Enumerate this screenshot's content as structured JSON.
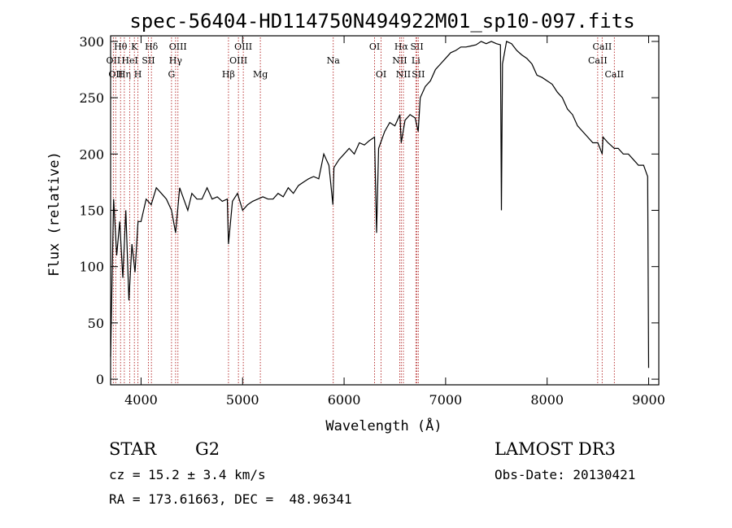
{
  "chart_data": {
    "type": "line",
    "title": "spec-56404-HD114750N494922M01_sp10-097.fits",
    "xlabel": "Wavelength (Å)",
    "ylabel": "Flux (relative)",
    "xlim": [
      3700,
      9100
    ],
    "ylim": [
      -5,
      305
    ],
    "xticks": [
      4000,
      5000,
      6000,
      7000,
      8000,
      9000
    ],
    "yticks": [
      0,
      50,
      100,
      150,
      200,
      250,
      300
    ],
    "grid": false,
    "series": [
      {
        "name": "spectrum",
        "x": [
          3700,
          3730,
          3760,
          3790,
          3820,
          3850,
          3880,
          3910,
          3940,
          3970,
          4000,
          4050,
          4100,
          4150,
          4200,
          4250,
          4300,
          4340,
          4380,
          4420,
          4460,
          4500,
          4550,
          4600,
          4650,
          4700,
          4750,
          4800,
          4850,
          4861,
          4900,
          4950,
          5000,
          5050,
          5100,
          5150,
          5200,
          5250,
          5300,
          5350,
          5400,
          5450,
          5500,
          5550,
          5600,
          5650,
          5700,
          5750,
          5800,
          5850,
          5890,
          5900,
          5950,
          6000,
          6050,
          6100,
          6150,
          6200,
          6250,
          6300,
          6320,
          6340,
          6400,
          6450,
          6500,
          6550,
          6563,
          6600,
          6650,
          6700,
          6730,
          6750,
          6800,
          6850,
          6900,
          6950,
          7000,
          7050,
          7100,
          7150,
          7200,
          7250,
          7300,
          7350,
          7400,
          7450,
          7500,
          7540,
          7550,
          7560,
          7600,
          7650,
          7700,
          7750,
          7800,
          7850,
          7900,
          7950,
          8000,
          8050,
          8100,
          8150,
          8200,
          8250,
          8300,
          8350,
          8400,
          8450,
          8500,
          8542,
          8550,
          8600,
          8662,
          8700,
          8750,
          8800,
          8850,
          8900,
          8950,
          8990,
          9000
        ],
        "y": [
          20,
          160,
          110,
          140,
          90,
          150,
          70,
          120,
          95,
          140,
          140,
          160,
          155,
          170,
          165,
          160,
          150,
          130,
          170,
          160,
          150,
          165,
          160,
          160,
          170,
          160,
          162,
          158,
          160,
          120,
          158,
          165,
          150,
          155,
          158,
          160,
          162,
          160,
          160,
          165,
          162,
          170,
          165,
          172,
          175,
          178,
          180,
          178,
          200,
          190,
          155,
          188,
          195,
          200,
          205,
          200,
          210,
          208,
          212,
          215,
          130,
          205,
          220,
          228,
          225,
          235,
          210,
          230,
          235,
          232,
          220,
          250,
          260,
          265,
          275,
          280,
          285,
          290,
          292,
          295,
          295,
          296,
          297,
          300,
          298,
          300,
          298,
          297,
          150,
          280,
          300,
          298,
          292,
          288,
          285,
          280,
          270,
          268,
          265,
          262,
          255,
          250,
          240,
          235,
          225,
          220,
          215,
          210,
          210,
          200,
          215,
          210,
          205,
          205,
          200,
          200,
          195,
          190,
          190,
          180,
          10
        ]
      }
    ],
    "lines": [
      {
        "wavelength": 3727,
        "label": "OII",
        "row": 2
      },
      {
        "wavelength": 3750,
        "label": "OII",
        "row": 3
      },
      {
        "wavelength": 3798,
        "label": "Hθ",
        "row": 1
      },
      {
        "wavelength": 3835,
        "label": "Hη",
        "row": 3
      },
      {
        "wavelength": 3889,
        "label": "HeI",
        "row": 2
      },
      {
        "wavelength": 3934,
        "label": "K",
        "row": 1
      },
      {
        "wavelength": 3969,
        "label": "H",
        "row": 3
      },
      {
        "wavelength": 4072,
        "label": "SII",
        "row": 2
      },
      {
        "wavelength": 4102,
        "label": "Hδ",
        "row": 1
      },
      {
        "wavelength": 4300,
        "label": "G",
        "row": 3
      },
      {
        "wavelength": 4340,
        "label": "Hγ",
        "row": 2
      },
      {
        "wavelength": 4363,
        "label": "OIII",
        "row": 1
      },
      {
        "wavelength": 4861,
        "label": "Hβ",
        "row": 3
      },
      {
        "wavelength": 4959,
        "label": "OIII",
        "row": 2
      },
      {
        "wavelength": 5007,
        "label": "OIII",
        "row": 1
      },
      {
        "wavelength": 5175,
        "label": "Mg",
        "row": 3
      },
      {
        "wavelength": 5893,
        "label": "Na",
        "row": 2
      },
      {
        "wavelength": 6300,
        "label": "OI",
        "row": 1
      },
      {
        "wavelength": 6364,
        "label": "OI",
        "row": 3
      },
      {
        "wavelength": 6548,
        "label": "NII",
        "row": 2
      },
      {
        "wavelength": 6563,
        "label": "Hα",
        "row": 1
      },
      {
        "wavelength": 6584,
        "label": "NII",
        "row": 3
      },
      {
        "wavelength": 6707,
        "label": "Li",
        "row": 2
      },
      {
        "wavelength": 6717,
        "label": "SII",
        "row": 1
      },
      {
        "wavelength": 6731,
        "label": "SII",
        "row": 3
      },
      {
        "wavelength": 8498,
        "label": "CaII",
        "row": 2
      },
      {
        "wavelength": 8542,
        "label": "CaII",
        "row": 1
      },
      {
        "wavelength": 8662,
        "label": "CaII",
        "row": 3
      }
    ]
  },
  "info": {
    "object_class": "STAR",
    "subclass": "G2",
    "survey": "LAMOST DR3",
    "redshift": "cz = 15.2 ± 3.4 km/s",
    "obs_date": "Obs-Date: 20130421",
    "coords": "RA = 173.61663, DEC =  48.96341"
  },
  "colors": {
    "spectrum": "#000000",
    "line_markers": "#b22222",
    "background": "#ffffff"
  }
}
